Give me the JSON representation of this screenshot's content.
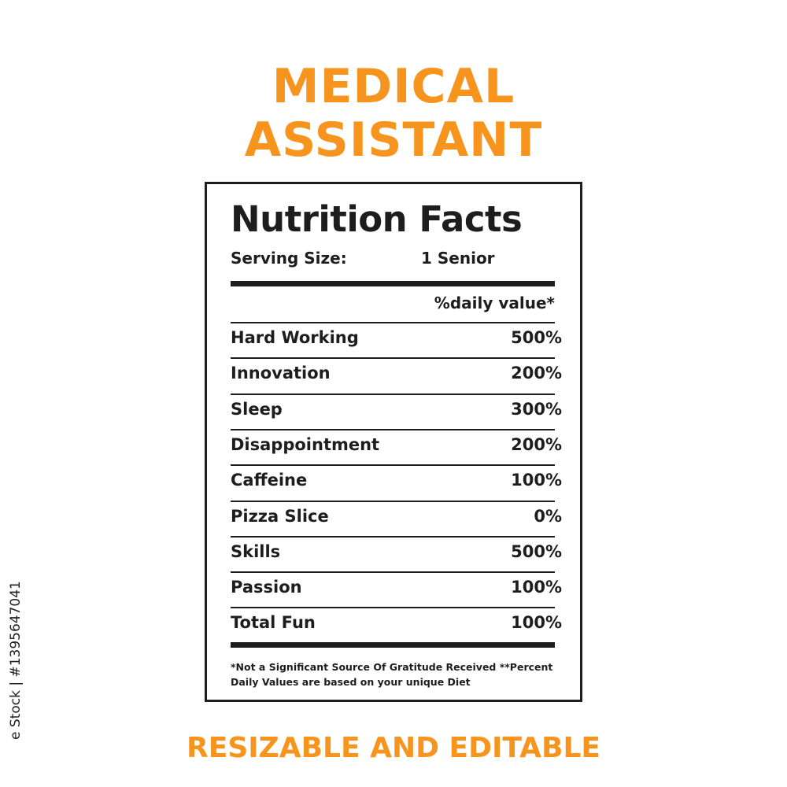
{
  "heading": {
    "line1": "MEDICAL",
    "line2": "ASSISTANT"
  },
  "label": {
    "title": "Nutrition Facts",
    "serving_label": "Serving Size:",
    "serving_value": "1 Senior",
    "daily_value_header": "%daily value*",
    "rows": [
      {
        "name": "Hard Working",
        "value": "500%"
      },
      {
        "name": "Innovation",
        "value": "200%"
      },
      {
        "name": "Sleep",
        "value": "300%"
      },
      {
        "name": "Disappointment",
        "value": "200%"
      },
      {
        "name": "Caffeine",
        "value": "100%"
      },
      {
        "name": "Pizza Slice",
        "value": "0%"
      },
      {
        "name": "Skills",
        "value": "500%"
      },
      {
        "name": "Passion",
        "value": "100%"
      },
      {
        "name": "Total Fun",
        "value": "100%"
      }
    ],
    "footnote_line1": "*Not a Significant Source Of Gratitude Received **Percent",
    "footnote_line2": "Daily Values are based on your  unique Diet"
  },
  "tagline": "RESIZABLE AND EDITABLE",
  "watermark": "e Stock | #1395647041",
  "colors": {
    "accent": "#f7941d",
    "ink": "#1d1d1d"
  }
}
